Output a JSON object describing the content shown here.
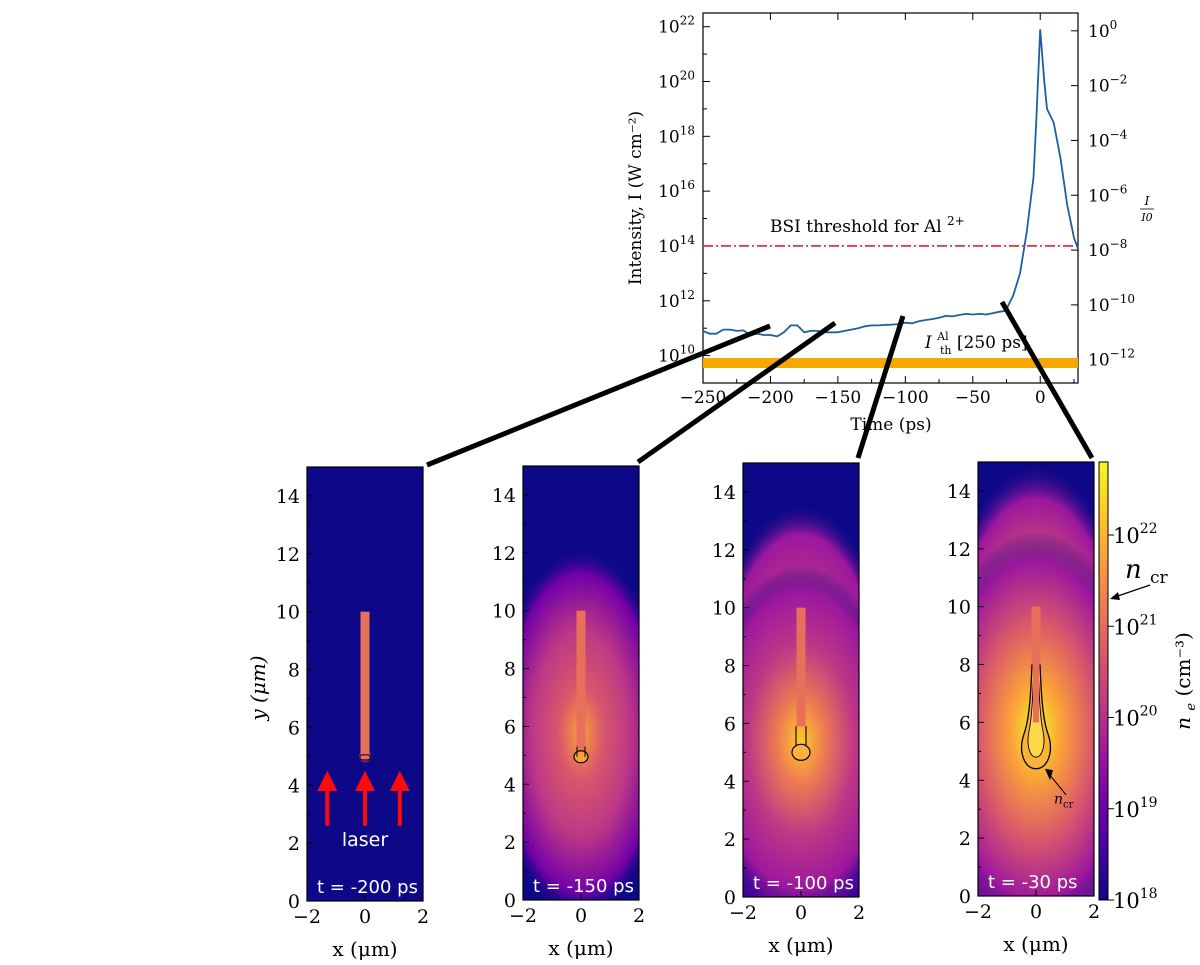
{
  "chart_data": [
    {
      "type": "line",
      "xlabel": "Time (ps)",
      "ylabel": "Intensity, I (W cm⁻²)",
      "y2label_num": "I",
      "y2label_den": "I0",
      "xlim": [
        -250,
        28
      ],
      "ylim_log10": [
        9.0,
        22.5
      ],
      "yscale": "log",
      "x_ticks": [
        "−250",
        "−200",
        "−150",
        "−100",
        "−50",
        "0"
      ],
      "y_ticks_exp": [
        "10",
        "12",
        "14",
        "16",
        "18",
        "20",
        "22"
      ],
      "y2_ticks_exp": [
        "0",
        "−2",
        "−4",
        "−6",
        "−8",
        "−10",
        "−12"
      ],
      "series": [
        {
          "x": [
            -250,
            -245,
            -240,
            -235,
            -230,
            -225,
            -220,
            -215,
            -210,
            -205,
            -200,
            -195,
            -190,
            -185,
            -180,
            -175,
            -170,
            -165,
            -160,
            -155,
            -150,
            -145,
            -140,
            -135,
            -130,
            -125,
            -120,
            -115,
            -110,
            -105,
            -100,
            -95,
            -90,
            -85,
            -80,
            -75,
            -70,
            -65,
            -60,
            -55,
            -50,
            -45,
            -40,
            -35,
            -30,
            -27,
            -25,
            -20,
            -15,
            -10,
            -5,
            -3,
            0,
            3,
            5,
            10,
            15,
            20,
            25,
            28
          ],
          "log10_y": [
            10.9,
            10.8,
            10.8,
            10.95,
            10.95,
            10.9,
            10.92,
            10.75,
            10.8,
            10.75,
            10.75,
            10.7,
            10.85,
            11.1,
            11.1,
            10.85,
            10.9,
            10.9,
            10.85,
            10.85,
            10.85,
            10.9,
            10.95,
            11.0,
            11.07,
            11.1,
            11.1,
            11.12,
            11.13,
            11.15,
            11.2,
            11.18,
            11.25,
            11.3,
            11.33,
            11.38,
            11.45,
            11.43,
            11.48,
            11.52,
            11.5,
            11.52,
            11.5,
            11.55,
            11.6,
            11.62,
            11.7,
            12.2,
            13.0,
            14.5,
            16.5,
            18.5,
            21.9,
            20.0,
            19.0,
            18.5,
            17.2,
            15.5,
            14.3,
            13.9
          ]
        }
      ],
      "annotations": {
        "bsi_label": "BSI threshold for Al",
        "bsi_superscript": "2+",
        "bsi_log10": 14.0,
        "ith_label_main": "I",
        "ith_sub": "th",
        "ith_sup": "Al",
        "ith_bracket": "[250 ps]",
        "ith_log10": 9.55
      },
      "colors": {
        "line": "#1f5f9f",
        "bsi": "#e0202a",
        "threshold_band": "#f5a800"
      }
    },
    {
      "type": "heatmap",
      "xlabel": "x (μm)",
      "ylabel": "y (μm)",
      "xlim": [
        -2,
        2
      ],
      "ylim": [
        0,
        15
      ],
      "x_ticks": [
        "−2",
        "0",
        "2"
      ],
      "y_ticks": [
        "0",
        "2",
        "4",
        "6",
        "8",
        "10",
        "12",
        "14"
      ],
      "panels": [
        {
          "time_label": "t = -200 ps",
          "time_ps": -200,
          "laser_label": "laser"
        },
        {
          "time_label": "t = -150 ps",
          "time_ps": -150
        },
        {
          "time_label": "t = -100 ps",
          "time_ps": -100
        },
        {
          "time_label": "t = -30 ps",
          "time_ps": -30,
          "contour_label": "n",
          "contour_sub": "cr"
        }
      ],
      "colorbar": {
        "label": "n_e (cm⁻³)",
        "label_main": "n",
        "label_sub": "e",
        "label_units": "(cm⁻³)",
        "ticks_exp": [
          "18",
          "19",
          "20",
          "21",
          "22"
        ],
        "range_log10": [
          18,
          22.8
        ],
        "ncr_label": "n",
        "ncr_sub": "cr",
        "ncr_log10": 21.0,
        "cmap": "plasma"
      },
      "colors": {
        "background": "#0c0887",
        "target": "#e8705a",
        "laser_arrow": "#ff0a0a"
      }
    }
  ]
}
